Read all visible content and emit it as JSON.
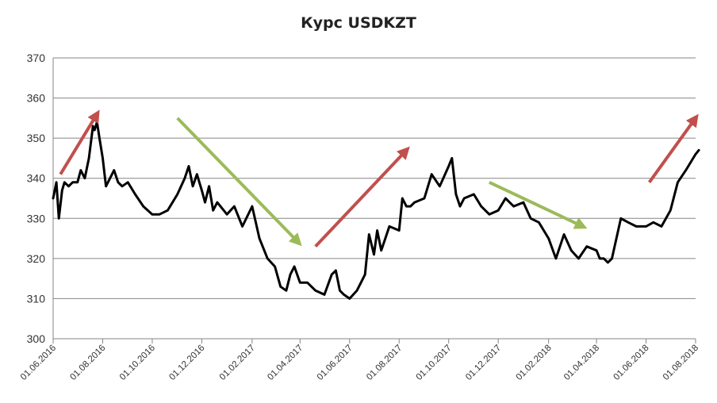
{
  "chart_data": {
    "type": "line",
    "title": "Курс USDKZT",
    "xlabel": "",
    "ylabel": "",
    "ylim": [
      300,
      370
    ],
    "yticks": [
      "300",
      "310",
      "320",
      "330",
      "340",
      "350",
      "360",
      "370"
    ],
    "ytick_values": [
      300,
      310,
      320,
      330,
      340,
      350,
      360,
      370
    ],
    "xticks": [
      "01.06.2016",
      "01.08.2016",
      "01.10.2016",
      "01.12.2016",
      "01.02.2017",
      "01.04.2017",
      "01.06.2017",
      "01.08.2017",
      "01.10.2017",
      "01.12.2017",
      "01.02.2018",
      "01.04.2018",
      "01.06.2018",
      "01.08.2018"
    ],
    "grid": true,
    "series": [
      {
        "color": "#000000",
        "x": [
          "2016-06-01",
          "2016-06-05",
          "2016-06-08",
          "2016-06-12",
          "2016-06-15",
          "2016-06-20",
          "2016-06-25",
          "2016-07-01",
          "2016-07-05",
          "2016-07-10",
          "2016-07-15",
          "2016-07-20",
          "2016-07-22",
          "2016-07-25",
          "2016-07-28",
          "2016-08-01",
          "2016-08-05",
          "2016-08-10",
          "2016-08-15",
          "2016-08-20",
          "2016-08-25",
          "2016-09-01",
          "2016-09-10",
          "2016-09-20",
          "2016-10-01",
          "2016-10-10",
          "2016-10-20",
          "2016-11-01",
          "2016-11-10",
          "2016-11-15",
          "2016-11-20",
          "2016-11-25",
          "2016-12-01",
          "2016-12-05",
          "2016-12-10",
          "2016-12-15",
          "2016-12-20",
          "2017-01-01",
          "2017-01-10",
          "2017-01-20",
          "2017-02-01",
          "2017-02-10",
          "2017-02-20",
          "2017-03-01",
          "2017-03-08",
          "2017-03-15",
          "2017-03-20",
          "2017-03-25",
          "2017-04-01",
          "2017-04-10",
          "2017-04-20",
          "2017-05-01",
          "2017-05-10",
          "2017-05-15",
          "2017-05-20",
          "2017-05-25",
          "2017-06-01",
          "2017-06-10",
          "2017-06-20",
          "2017-06-25",
          "2017-07-01",
          "2017-07-05",
          "2017-07-10",
          "2017-07-15",
          "2017-07-20",
          "2017-08-01",
          "2017-08-05",
          "2017-08-10",
          "2017-08-15",
          "2017-08-20",
          "2017-09-01",
          "2017-09-10",
          "2017-09-20",
          "2017-10-01",
          "2017-10-05",
          "2017-10-10",
          "2017-10-15",
          "2017-10-20",
          "2017-11-01",
          "2017-11-10",
          "2017-11-20",
          "2017-12-01",
          "2017-12-10",
          "2017-12-20",
          "2018-01-01",
          "2018-01-10",
          "2018-01-20",
          "2018-02-01",
          "2018-02-10",
          "2018-02-15",
          "2018-02-20",
          "2018-03-01",
          "2018-03-10",
          "2018-03-20",
          "2018-04-01",
          "2018-04-05",
          "2018-04-10",
          "2018-04-15",
          "2018-04-20",
          "2018-05-01",
          "2018-05-10",
          "2018-05-20",
          "2018-06-01",
          "2018-06-10",
          "2018-06-20",
          "2018-07-01",
          "2018-07-10",
          "2018-07-20",
          "2018-08-01",
          "2018-08-05"
        ],
        "values": [
          335,
          339,
          330,
          337,
          339,
          338,
          339,
          339,
          342,
          340,
          345,
          353,
          352,
          354,
          350,
          345,
          338,
          340,
          342,
          339,
          338,
          339,
          336,
          333,
          331,
          331,
          332,
          336,
          340,
          343,
          338,
          341,
          337,
          334,
          338,
          332,
          334,
          331,
          333,
          328,
          333,
          325,
          320,
          318,
          313,
          312,
          316,
          318,
          314,
          314,
          312,
          311,
          316,
          317,
          312,
          311,
          310,
          312,
          316,
          326,
          321,
          327,
          322,
          325,
          328,
          327,
          335,
          333,
          333,
          334,
          335,
          341,
          338,
          343,
          345,
          336,
          333,
          335,
          336,
          333,
          331,
          332,
          335,
          333,
          334,
          330,
          329,
          325,
          320,
          323,
          326,
          322,
          320,
          323,
          322,
          320,
          320,
          319,
          320,
          330,
          329,
          328,
          328,
          329,
          328,
          332,
          339,
          342,
          346,
          347
        ]
      }
    ],
    "annotations": [
      {
        "kind": "arrow-up",
        "color": "#c0504d",
        "from": [
          "2016-06-10",
          341
        ],
        "to": [
          "2016-07-25",
          356
        ]
      },
      {
        "kind": "arrow-down",
        "color": "#9bbb59",
        "from": [
          "2016-11-01",
          355
        ],
        "to": [
          "2017-03-30",
          324
        ]
      },
      {
        "kind": "arrow-up",
        "color": "#c0504d",
        "from": [
          "2017-04-20",
          323
        ],
        "to": [
          "2017-08-10",
          347
        ]
      },
      {
        "kind": "arrow-down",
        "color": "#9bbb59",
        "from": [
          "2017-11-20",
          339
        ],
        "to": [
          "2018-03-15",
          328
        ]
      },
      {
        "kind": "arrow-up",
        "color": "#c0504d",
        "from": [
          "2018-06-05",
          339
        ],
        "to": [
          "2018-08-01",
          355
        ]
      }
    ]
  }
}
